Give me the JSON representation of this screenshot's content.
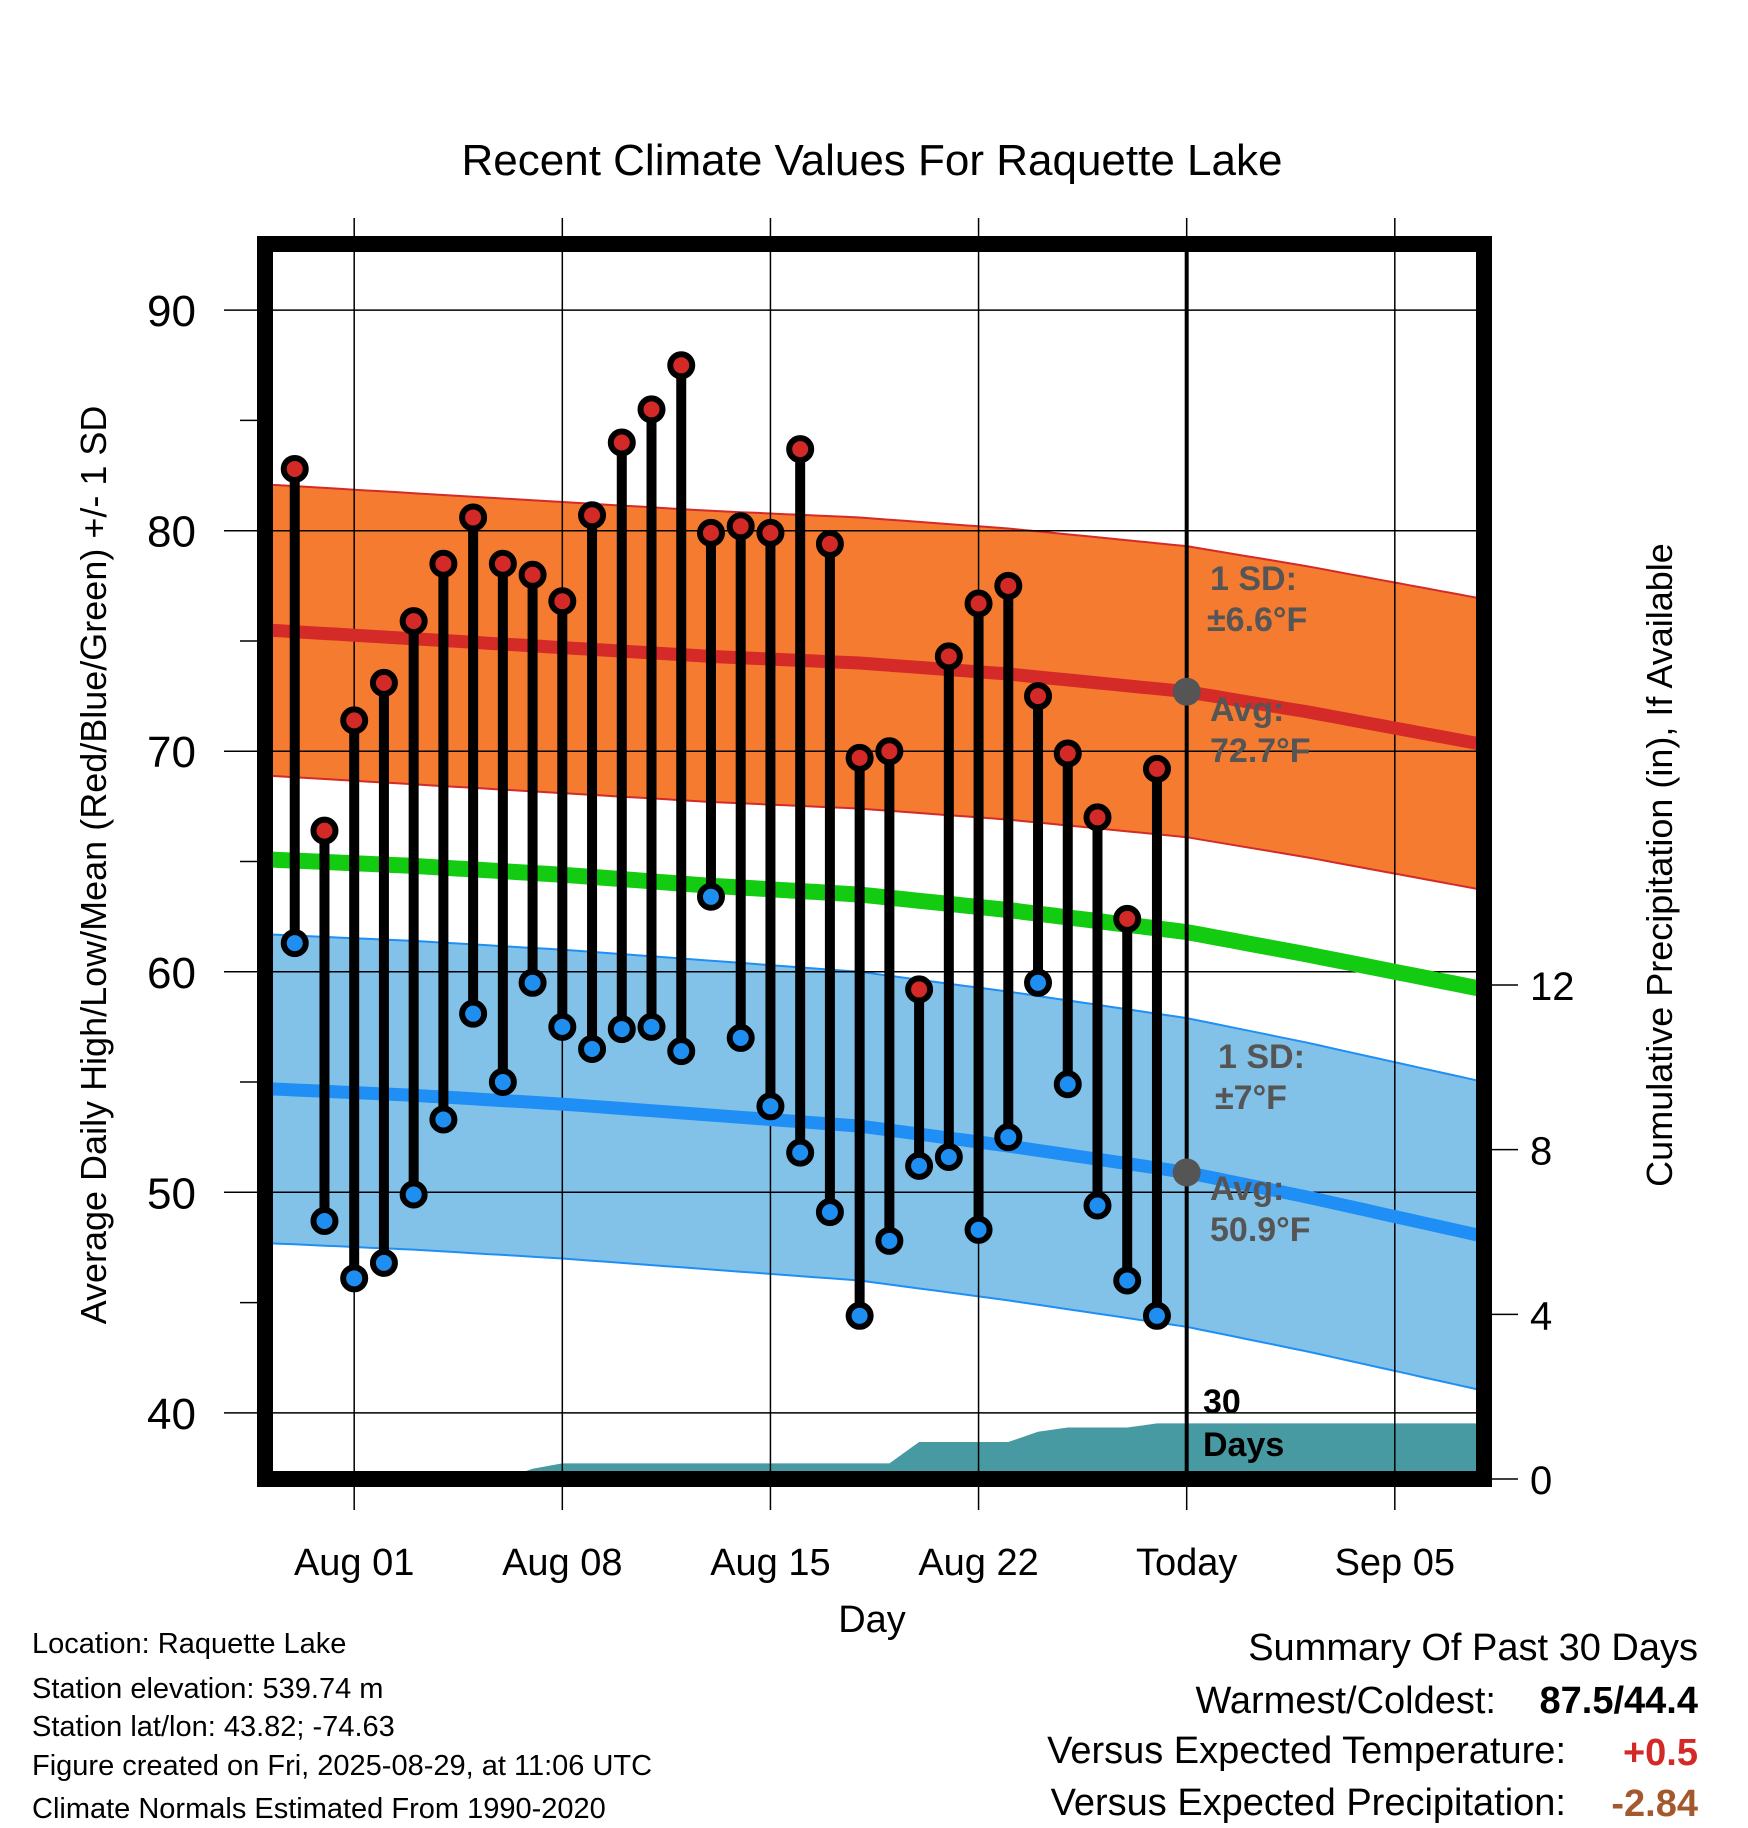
{
  "chart_data": {
    "type": "line",
    "title": "Recent Climate Values For Raquette Lake",
    "xlabel": "Day",
    "ylabel": "Average Daily High/Low/Mean (Red/Blue/Green) +/- 1 SD",
    "y2label": "Cumulative Precipitation (in), If Available",
    "ylim": [
      37,
      93
    ],
    "y2lim": [
      0,
      30
    ],
    "yticks": [
      40,
      50,
      60,
      70,
      80,
      90
    ],
    "y2ticks": [
      0,
      4,
      8,
      12
    ],
    "xlim": [
      0,
      41
    ],
    "xticks": [
      {
        "day": 3,
        "label": "Aug 01"
      },
      {
        "day": 10,
        "label": "Aug 08"
      },
      {
        "day": 17,
        "label": "Aug 15"
      },
      {
        "day": 24,
        "label": "Aug 22"
      },
      {
        "day": 31,
        "label": "Today"
      },
      {
        "day": 38,
        "label": "Sep 05"
      }
    ],
    "today_day": 31,
    "daily": {
      "days": [
        1,
        2,
        3,
        4,
        5,
        6,
        7,
        8,
        9,
        10,
        11,
        12,
        13,
        14,
        15,
        16,
        17,
        18,
        19,
        20,
        21,
        22,
        23,
        24,
        25,
        26,
        27,
        28,
        29,
        30
      ],
      "high": [
        82.8,
        66.4,
        71.4,
        73.1,
        75.9,
        78.5,
        80.6,
        78.5,
        78.0,
        76.8,
        80.7,
        84.0,
        85.5,
        87.5,
        79.9,
        80.2,
        79.9,
        83.7,
        79.4,
        69.7,
        70.0,
        59.2,
        74.3,
        76.7,
        77.5,
        72.5,
        69.9,
        67.0,
        62.4,
        69.2
      ],
      "low": [
        61.3,
        48.7,
        46.1,
        46.8,
        49.9,
        53.3,
        58.1,
        55.0,
        59.5,
        57.5,
        56.5,
        57.4,
        57.5,
        56.4,
        63.4,
        57.0,
        53.9,
        51.8,
        49.1,
        44.4,
        47.8,
        51.2,
        51.6,
        48.3,
        52.5,
        59.5,
        54.9,
        49.4,
        46.0,
        44.4
      ]
    },
    "normals": {
      "days": [
        0,
        5,
        10,
        15,
        20,
        25,
        31,
        35,
        41
      ],
      "avg_high": [
        75.5,
        75.1,
        74.7,
        74.3,
        74.0,
        73.5,
        72.7,
        71.8,
        70.3
      ],
      "avg_low": [
        54.7,
        54.4,
        54.0,
        53.5,
        53.0,
        52.1,
        50.9,
        49.8,
        48.0
      ],
      "avg_mean": [
        65.1,
        64.8,
        64.4,
        63.9,
        63.5,
        62.8,
        61.8,
        60.8,
        59.2
      ],
      "high_sd": 6.6,
      "low_sd": 7.0
    },
    "precip_cumulative": {
      "days": [
        0,
        8,
        9,
        10,
        11,
        12,
        13,
        14,
        15,
        16,
        17,
        18,
        19,
        20,
        21,
        22,
        23,
        24,
        25,
        26,
        27,
        28,
        29,
        30,
        31,
        41
      ],
      "values": [
        0,
        0,
        0.25,
        0.38,
        0.38,
        0.38,
        0.38,
        0.38,
        0.38,
        0.38,
        0.38,
        0.38,
        0.38,
        0.38,
        0.38,
        0.9,
        0.9,
        0.9,
        0.9,
        1.15,
        1.25,
        1.25,
        1.25,
        1.35,
        1.35,
        1.35
      ]
    },
    "annotations": {
      "high_sd_label": "1 SD:",
      "high_sd_value": "±6.6°F",
      "high_avg_label": "Avg:",
      "high_avg_value": "72.7°F",
      "low_sd_label": "1 SD:",
      "low_sd_value": "±7°F",
      "low_avg_label": "Avg:",
      "low_avg_value": "50.9°F",
      "days_label_1": "30",
      "days_label_2": "Days"
    },
    "colors": {
      "high_band": "#f47b30",
      "high_line": "#d42a28",
      "low_band": "#83c2e8",
      "low_line": "#1f8ff5",
      "mean_line": "#13cc11",
      "precip": "#479aa2",
      "high_marker": "#d32a27",
      "low_marker": "#1e8ff0",
      "annotation": "#555555",
      "temp_positive": "#d32a27",
      "precip_negative": "#a4582e"
    }
  },
  "info": {
    "location": "Location: Raquette Lake",
    "elevation": "Station elevation: 539.74 m",
    "latlon": "Station lat/lon: 43.82; -74.63",
    "created": "Figure created on Fri, 2025-08-29, at 11:06 UTC",
    "normals": "Climate Normals Estimated From 1990-2020"
  },
  "summary": {
    "title": "Summary Of Past 30 Days",
    "warm_cold_label": "Warmest/Coldest:",
    "warm_cold_value": "87.5/44.4",
    "temp_label": "Versus Expected Temperature:",
    "temp_value": "+0.5",
    "precip_label": "Versus Expected Precipitation:",
    "precip_value": "-2.84"
  }
}
